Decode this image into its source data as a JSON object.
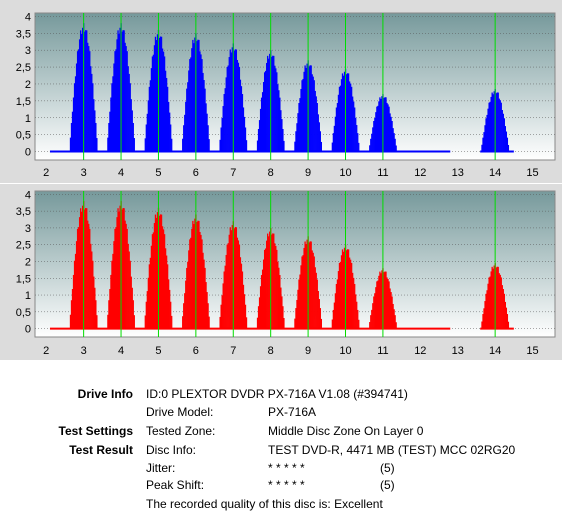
{
  "chart_data": [
    {
      "type": "bar",
      "color": "#0000ff",
      "xlim": [
        1.7,
        15.6
      ],
      "ylim": [
        -0.25,
        4.1
      ],
      "xticks": [
        2,
        3,
        4,
        5,
        6,
        7,
        8,
        9,
        10,
        11,
        12,
        13,
        14,
        15
      ],
      "yticks": [
        0,
        0.5,
        1,
        1.5,
        2,
        2.5,
        3,
        3.5,
        4
      ],
      "yticklabels": [
        "0",
        "0,5",
        "1",
        "1,5",
        "2",
        "2,5",
        "3",
        "3,5",
        "4"
      ],
      "green_lines": [
        3,
        4,
        5,
        6,
        7,
        8,
        9,
        10,
        11,
        14
      ],
      "peaks": [
        {
          "x": 3,
          "y": 3.8
        },
        {
          "x": 4,
          "y": 3.8
        },
        {
          "x": 5,
          "y": 3.6
        },
        {
          "x": 6,
          "y": 3.5
        },
        {
          "x": 7,
          "y": 3.2
        },
        {
          "x": 8,
          "y": 3.0
        },
        {
          "x": 9,
          "y": 2.7
        },
        {
          "x": 10,
          "y": 2.45
        },
        {
          "x": 11,
          "y": 1.7
        },
        {
          "x": 14,
          "y": 1.85
        }
      ],
      "baseline_until": 12.8
    },
    {
      "type": "bar",
      "color": "#ff0000",
      "xlim": [
        1.7,
        15.6
      ],
      "ylim": [
        -0.25,
        4.1
      ],
      "xticks": [
        2,
        3,
        4,
        5,
        6,
        7,
        8,
        9,
        10,
        11,
        12,
        13,
        14,
        15
      ],
      "yticks": [
        0,
        0.5,
        1,
        1.5,
        2,
        2.5,
        3,
        3.5,
        4
      ],
      "yticklabels": [
        "0",
        "0,5",
        "1",
        "1,5",
        "2",
        "2,5",
        "3",
        "3,5",
        "4"
      ],
      "green_lines": [
        3,
        4,
        5,
        6,
        7,
        8,
        9,
        10,
        11,
        14
      ],
      "peaks": [
        {
          "x": 3,
          "y": 3.8
        },
        {
          "x": 4,
          "y": 3.8
        },
        {
          "x": 5,
          "y": 3.6
        },
        {
          "x": 6,
          "y": 3.4
        },
        {
          "x": 7,
          "y": 3.2
        },
        {
          "x": 8,
          "y": 3.0
        },
        {
          "x": 9,
          "y": 2.75
        },
        {
          "x": 10,
          "y": 2.5
        },
        {
          "x": 11,
          "y": 1.8
        },
        {
          "x": 14,
          "y": 1.95
        }
      ],
      "baseline_until": 12.8
    }
  ],
  "info": {
    "drive_info_label": "Drive Info",
    "drive_info_value": "ID:0 PLEXTOR DVDR PX-716A V1.08 (#394741)",
    "drive_model_label": "Drive Model:",
    "drive_model_value": "PX-716A",
    "test_settings_label": "Test Settings",
    "tested_zone_label": "Tested Zone:",
    "tested_zone_value": "Middle Disc Zone On Layer 0",
    "test_result_label": "Test Result",
    "disc_info_label": "Disc Info:",
    "disc_info_value": "TEST DVD-R, 4471 MB (TEST) MCC 02RG20",
    "jitter_label": "Jitter:",
    "jitter_stars": "* * * * *",
    "jitter_score": "(5)",
    "peak_shift_label": "Peak Shift:",
    "peak_shift_stars": "* * * * *",
    "peak_shift_score": "(5)",
    "quality_text": "The recorded quality of this disc is: Excellent"
  }
}
